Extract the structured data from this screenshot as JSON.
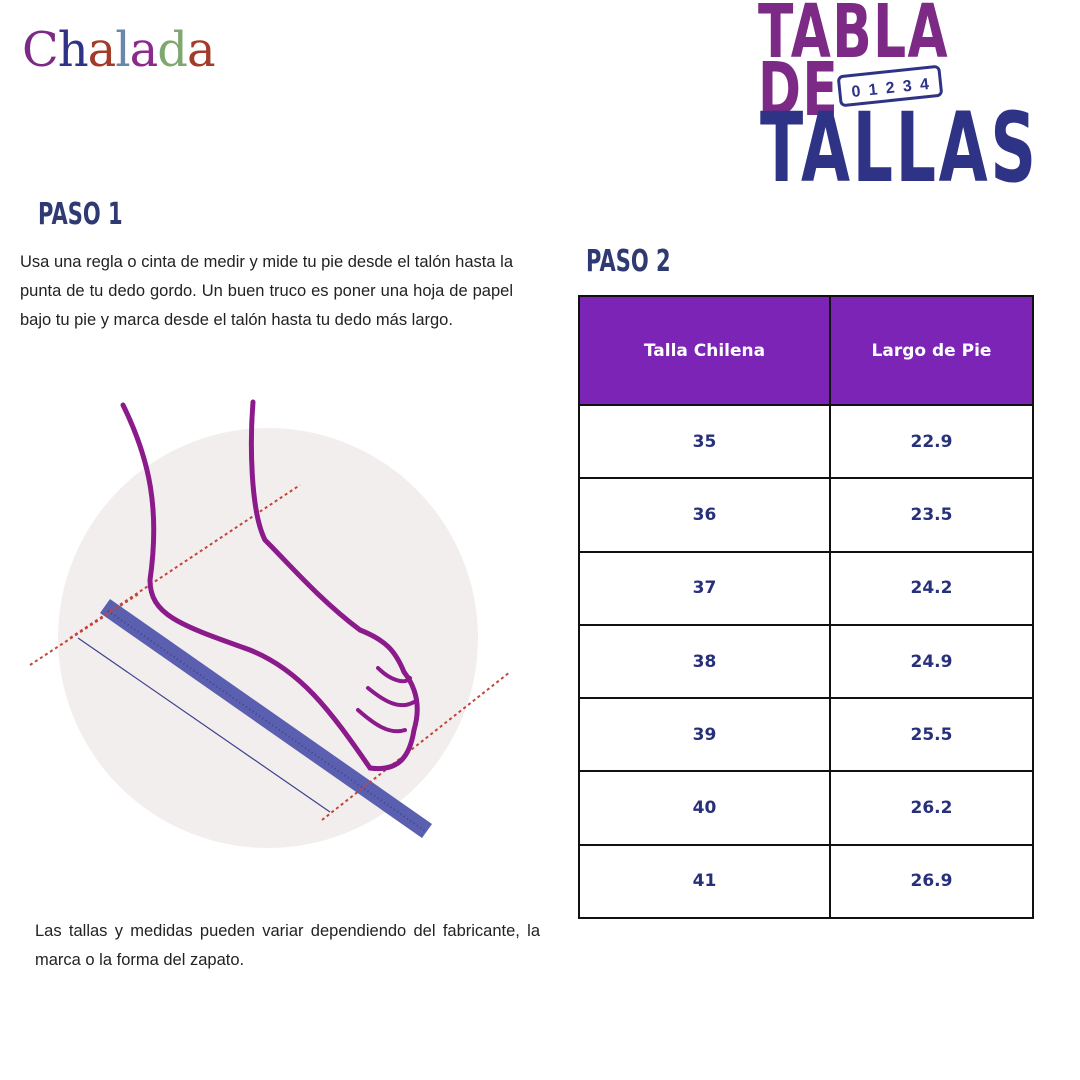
{
  "logo": {
    "text": "Chalada",
    "letters": [
      "C",
      "h",
      "a",
      "l",
      "a",
      "d",
      "a"
    ],
    "colors": [
      "#7c2a85",
      "#2e3386",
      "#a33b2a",
      "#6a86a8",
      "#8b2a8b",
      "#7fa870",
      "#a33b2a"
    ]
  },
  "title": {
    "line1": "TABLA DE",
    "line2": "TALLAS",
    "ruler_digits": [
      "0",
      "1",
      "2",
      "3",
      "4"
    ]
  },
  "step1": {
    "heading": "PASO 1",
    "text": "Usa una regla o cinta de medir y mide tu pie desde el talón hasta la punta de tu dedo gordo. Un buen truco es poner una hoja de papel bajo tu pie y marca desde el talón hasta tu dedo más largo."
  },
  "step2": {
    "heading": "PASO 2"
  },
  "table": {
    "headers": [
      "Talla Chilena",
      "Largo de Pie"
    ],
    "rows": [
      [
        "35",
        "22.9"
      ],
      [
        "36",
        "23.5"
      ],
      [
        "37",
        "24.2"
      ],
      [
        "38",
        "24.9"
      ],
      [
        "39",
        "25.5"
      ],
      [
        "40",
        "26.2"
      ],
      [
        "41",
        "26.9"
      ]
    ]
  },
  "note": "Las tallas y medidas pueden variar dependiendo del fabricante, la marca o la forma del zapato.",
  "colors": {
    "header_bg": "#7b24b6",
    "navy": "#2e3386",
    "purple": "#7c2a85",
    "foot": "#8b1a8b",
    "ruler": "#5a5fb0"
  }
}
